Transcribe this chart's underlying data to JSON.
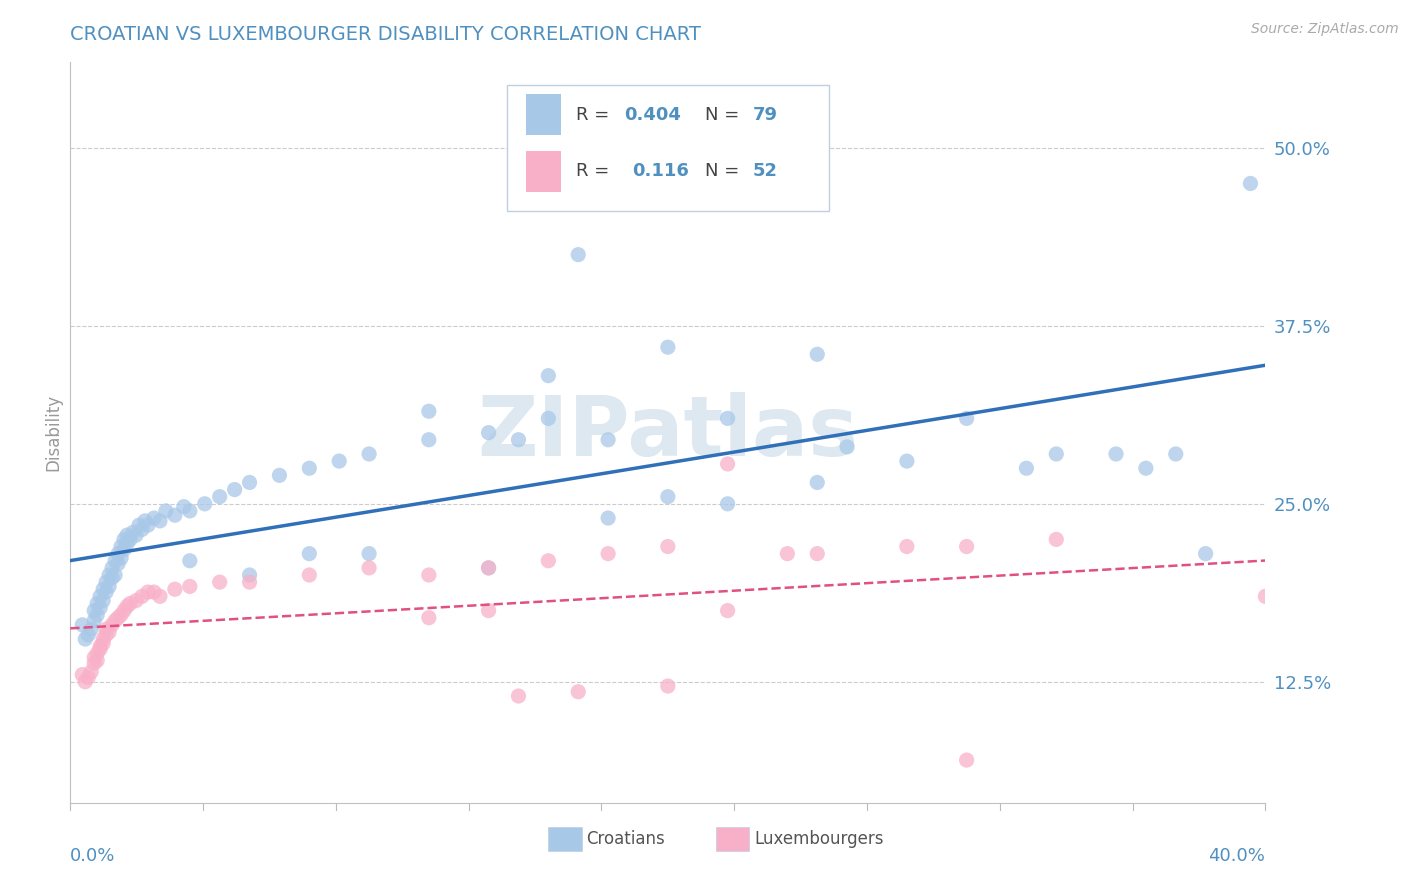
{
  "title": "CROATIAN VS LUXEMBOURGER DISABILITY CORRELATION CHART",
  "source": "Source: ZipAtlas.com",
  "ylabel": "Disability",
  "yticks": [
    0.125,
    0.25,
    0.375,
    0.5
  ],
  "ytick_labels": [
    "12.5%",
    "25.0%",
    "37.5%",
    "50.0%"
  ],
  "xmin": 0.0,
  "xmax": 0.4,
  "ymin": 0.04,
  "ymax": 0.56,
  "croatian_R": "0.404",
  "croatian_N": "79",
  "luxembourger_R": "0.116",
  "luxembourger_N": "52",
  "blue_color": "#a8c8e8",
  "blue_line_color": "#3070b8",
  "pink_color": "#f8b0c8",
  "pink_line_color": "#e05080",
  "title_color": "#5090c0",
  "axis_color": "#5090c0",
  "watermark_color": "#dde8f0",
  "background_color": "#ffffff",
  "grid_color": "#cccccc",
  "legend_text_color": "#5090c0",
  "legend_border_color": "#c0d0e0",
  "croatian_x": [
    0.004,
    0.005,
    0.006,
    0.007,
    0.008,
    0.008,
    0.009,
    0.009,
    0.01,
    0.01,
    0.011,
    0.011,
    0.012,
    0.012,
    0.013,
    0.013,
    0.014,
    0.014,
    0.015,
    0.015,
    0.016,
    0.016,
    0.017,
    0.017,
    0.018,
    0.018,
    0.019,
    0.019,
    0.02,
    0.021,
    0.022,
    0.023,
    0.024,
    0.025,
    0.026,
    0.028,
    0.03,
    0.032,
    0.035,
    0.038,
    0.04,
    0.045,
    0.05,
    0.055,
    0.06,
    0.07,
    0.08,
    0.09,
    0.1,
    0.12,
    0.14,
    0.16,
    0.18,
    0.2,
    0.22,
    0.25,
    0.28,
    0.16,
    0.2,
    0.22,
    0.26,
    0.3,
    0.33,
    0.36,
    0.38,
    0.12,
    0.15,
    0.17,
    0.25,
    0.32,
    0.35,
    0.37,
    0.395,
    0.18,
    0.04,
    0.06,
    0.08,
    0.1,
    0.14
  ],
  "croatian_y": [
    0.165,
    0.155,
    0.158,
    0.162,
    0.168,
    0.175,
    0.172,
    0.18,
    0.177,
    0.185,
    0.182,
    0.19,
    0.188,
    0.195,
    0.192,
    0.2,
    0.198,
    0.205,
    0.2,
    0.21,
    0.208,
    0.215,
    0.212,
    0.22,
    0.218,
    0.225,
    0.222,
    0.228,
    0.225,
    0.23,
    0.228,
    0.235,
    0.232,
    0.238,
    0.235,
    0.24,
    0.238,
    0.245,
    0.242,
    0.248,
    0.245,
    0.25,
    0.255,
    0.26,
    0.265,
    0.27,
    0.275,
    0.28,
    0.285,
    0.295,
    0.3,
    0.31,
    0.295,
    0.255,
    0.25,
    0.265,
    0.28,
    0.34,
    0.36,
    0.31,
    0.29,
    0.31,
    0.285,
    0.275,
    0.215,
    0.315,
    0.295,
    0.425,
    0.355,
    0.275,
    0.285,
    0.285,
    0.475,
    0.24,
    0.21,
    0.2,
    0.215,
    0.215,
    0.205
  ],
  "luxembourger_x": [
    0.004,
    0.005,
    0.006,
    0.007,
    0.008,
    0.008,
    0.009,
    0.009,
    0.01,
    0.01,
    0.011,
    0.011,
    0.012,
    0.012,
    0.013,
    0.014,
    0.015,
    0.016,
    0.017,
    0.018,
    0.019,
    0.02,
    0.022,
    0.024,
    0.026,
    0.028,
    0.03,
    0.035,
    0.04,
    0.05,
    0.06,
    0.08,
    0.1,
    0.12,
    0.14,
    0.16,
    0.18,
    0.2,
    0.22,
    0.25,
    0.28,
    0.15,
    0.17,
    0.2,
    0.24,
    0.3,
    0.33,
    0.12,
    0.14,
    0.22,
    0.3,
    0.4
  ],
  "luxembourger_y": [
    0.13,
    0.125,
    0.128,
    0.132,
    0.138,
    0.142,
    0.14,
    0.145,
    0.148,
    0.15,
    0.152,
    0.155,
    0.158,
    0.162,
    0.16,
    0.165,
    0.168,
    0.17,
    0.172,
    0.175,
    0.178,
    0.18,
    0.182,
    0.185,
    0.188,
    0.188,
    0.185,
    0.19,
    0.192,
    0.195,
    0.195,
    0.2,
    0.205,
    0.2,
    0.205,
    0.21,
    0.215,
    0.22,
    0.278,
    0.215,
    0.22,
    0.115,
    0.118,
    0.122,
    0.215,
    0.22,
    0.225,
    0.17,
    0.175,
    0.175,
    0.07,
    0.185
  ]
}
